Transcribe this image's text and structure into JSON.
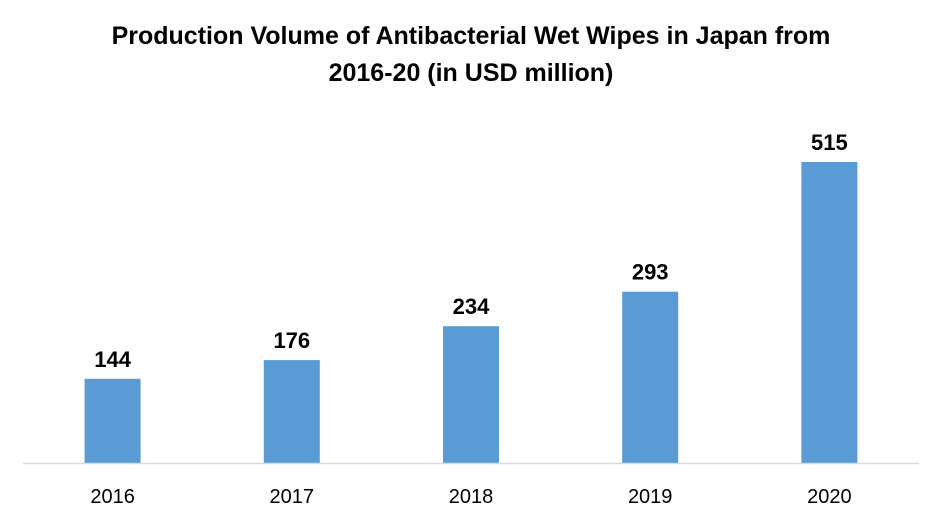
{
  "chart_data": {
    "type": "bar",
    "title_line1": "Production Volume of Antibacterial Wet Wipes in Japan from",
    "title_line2": "2016-20 (in USD million)",
    "categories": [
      "2016",
      "2017",
      "2018",
      "2019",
      "2020"
    ],
    "values": [
      144,
      176,
      234,
      293,
      515
    ],
    "xlabel": "",
    "ylabel": "",
    "ylim": [
      0,
      560
    ],
    "grid": false,
    "legend": "none",
    "bar_color": "#5b9bd5",
    "axis_color": "#d9d9d9"
  }
}
